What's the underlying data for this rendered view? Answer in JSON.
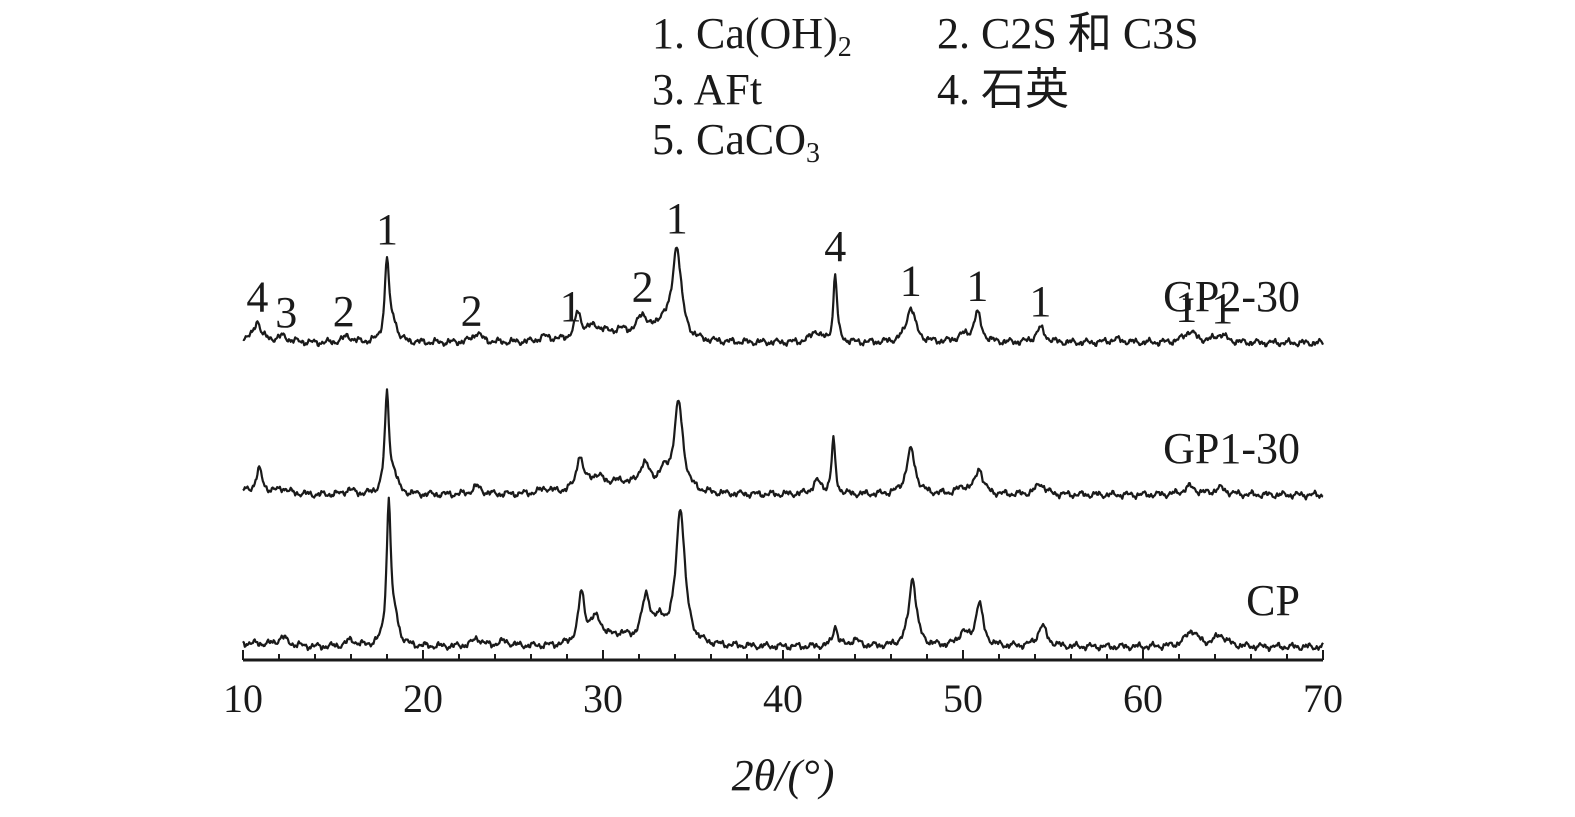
{
  "legend": [
    {
      "text": "1. Ca(OH)",
      "sub": "2"
    },
    {
      "text": "2. C2S 和 C3S",
      "sub": ""
    },
    {
      "text": "3. AFt",
      "sub": ""
    },
    {
      "text": "4. 石英",
      "sub": ""
    },
    {
      "text": "5. CaCO",
      "sub": "3"
    }
  ],
  "chart_data": {
    "type": "line",
    "xlabel": "2θ/(°)",
    "ylabel": "",
    "xlim": [
      10,
      70
    ],
    "xticks": [
      10,
      20,
      30,
      40,
      50,
      60,
      70
    ],
    "grid": false,
    "line_color": "#1a1a1a",
    "series": [
      {
        "name": "GP2-30",
        "baseline": 1.95,
        "peaks": [
          [
            10.8,
            0.12,
            0.2
          ],
          [
            12.2,
            0.03,
            0.3
          ],
          [
            15.8,
            0.04,
            0.3
          ],
          [
            18.0,
            0.52,
            0.15
          ],
          [
            18.4,
            0.1,
            0.2
          ],
          [
            23.0,
            0.06,
            0.3
          ],
          [
            26.8,
            0.03,
            0.4
          ],
          [
            28.6,
            0.15,
            0.2
          ],
          [
            29.5,
            0.09,
            0.8
          ],
          [
            31.0,
            0.05,
            0.6
          ],
          [
            32.2,
            0.14,
            0.4
          ],
          [
            33.3,
            0.1,
            0.4
          ],
          [
            34.1,
            0.58,
            0.3
          ],
          [
            41.8,
            0.07,
            0.3
          ],
          [
            42.9,
            0.43,
            0.12
          ],
          [
            47.1,
            0.22,
            0.3
          ],
          [
            50.0,
            0.04,
            0.4
          ],
          [
            50.8,
            0.18,
            0.25
          ],
          [
            54.3,
            0.09,
            0.3
          ],
          [
            58.5,
            0.02,
            0.5
          ],
          [
            62.6,
            0.07,
            0.4
          ],
          [
            64.3,
            0.05,
            0.4
          ]
        ],
        "peak_labels": [
          {
            "x": 10.8,
            "label": "4"
          },
          {
            "x": 12.4,
            "label": "3"
          },
          {
            "x": 15.6,
            "label": "2"
          },
          {
            "x": 18.0,
            "label": "1"
          },
          {
            "x": 22.7,
            "label": "2"
          },
          {
            "x": 28.2,
            "label": "1"
          },
          {
            "x": 32.2,
            "label": "2"
          },
          {
            "x": 34.1,
            "label": "1"
          },
          {
            "x": 42.9,
            "label": "4"
          },
          {
            "x": 47.1,
            "label": "1"
          },
          {
            "x": 50.8,
            "label": "1"
          },
          {
            "x": 54.3,
            "label": "1"
          },
          {
            "x": 62.4,
            "label": "1"
          },
          {
            "x": 64.4,
            "label": "1"
          }
        ]
      },
      {
        "name": "GP1-30",
        "baseline": 1.0,
        "peaks": [
          [
            10.9,
            0.14,
            0.2
          ],
          [
            12.2,
            0.03,
            0.3
          ],
          [
            15.9,
            0.03,
            0.3
          ],
          [
            18.0,
            0.62,
            0.15
          ],
          [
            18.4,
            0.1,
            0.2
          ],
          [
            23.0,
            0.05,
            0.3
          ],
          [
            26.8,
            0.03,
            0.4
          ],
          [
            28.7,
            0.2,
            0.2
          ],
          [
            29.6,
            0.1,
            0.8
          ],
          [
            31.0,
            0.05,
            0.6
          ],
          [
            32.3,
            0.16,
            0.4
          ],
          [
            33.4,
            0.1,
            0.4
          ],
          [
            34.2,
            0.55,
            0.3
          ],
          [
            41.9,
            0.08,
            0.3
          ],
          [
            42.8,
            0.34,
            0.12
          ],
          [
            47.1,
            0.28,
            0.3
          ],
          [
            50.0,
            0.04,
            0.4
          ],
          [
            50.9,
            0.16,
            0.25
          ],
          [
            54.3,
            0.07,
            0.3
          ],
          [
            62.6,
            0.05,
            0.4
          ],
          [
            64.3,
            0.04,
            0.4
          ]
        ],
        "peak_labels": []
      },
      {
        "name": "CP",
        "baseline": 0.05,
        "peaks": [
          [
            12.2,
            0.05,
            0.3
          ],
          [
            16.0,
            0.04,
            0.3
          ],
          [
            18.1,
            0.9,
            0.15
          ],
          [
            18.5,
            0.12,
            0.2
          ],
          [
            23.0,
            0.05,
            0.3
          ],
          [
            24.5,
            0.03,
            0.4
          ],
          [
            28.8,
            0.3,
            0.2
          ],
          [
            29.6,
            0.16,
            0.5
          ],
          [
            31.0,
            0.05,
            0.6
          ],
          [
            32.4,
            0.28,
            0.3
          ],
          [
            33.2,
            0.12,
            0.4
          ],
          [
            34.3,
            0.85,
            0.3
          ],
          [
            42.9,
            0.13,
            0.15
          ],
          [
            44.0,
            0.04,
            0.3
          ],
          [
            47.2,
            0.43,
            0.25
          ],
          [
            50.0,
            0.08,
            0.3
          ],
          [
            50.9,
            0.27,
            0.25
          ],
          [
            54.4,
            0.13,
            0.3
          ],
          [
            62.7,
            0.1,
            0.4
          ],
          [
            64.3,
            0.07,
            0.4
          ]
        ],
        "peak_labels": []
      }
    ]
  }
}
